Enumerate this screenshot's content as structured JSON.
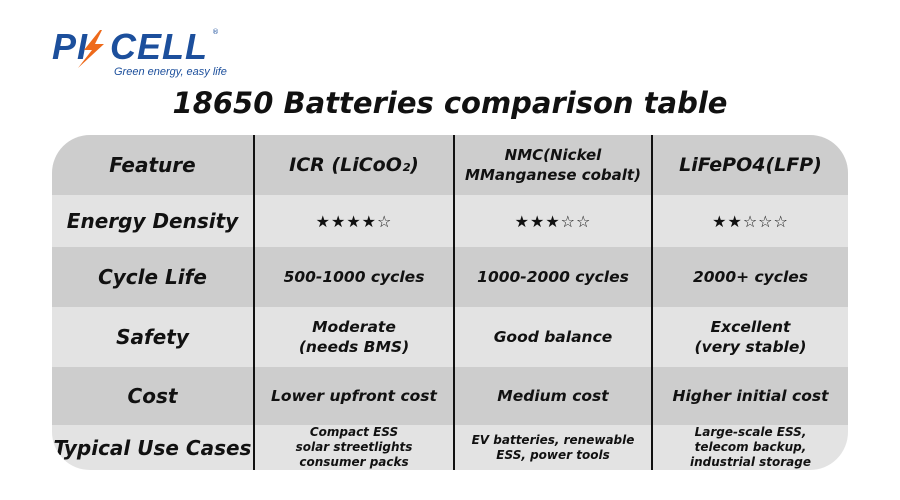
{
  "logo": {
    "brand": "PKCELL",
    "tagline": "Green energy, easy life",
    "registered": "®"
  },
  "title": "18650 Batteries comparison table",
  "colors": {
    "brand_blue": "#1c4f9c",
    "brand_orange": "#ee6a1b",
    "row_dark": "#cdcdcd",
    "row_light": "#e3e3e3"
  },
  "table": {
    "headers": [
      "Feature",
      "ICR (LiCoO₂)",
      "NMC(Nickel\nMManganese cobalt)",
      "LiFePO4(LFP)"
    ],
    "rows": [
      {
        "feature": "Energy Density",
        "values": [
          "★★★★☆",
          "★★★☆☆",
          "★★☆☆☆"
        ]
      },
      {
        "feature": "Cycle Life",
        "values": [
          "500-1000 cycles",
          "1000-2000 cycles",
          "2000+ cycles"
        ]
      },
      {
        "feature": "Safety",
        "values": [
          "Moderate\n(needs BMS)",
          "Good balance",
          "Excellent\n(very stable)"
        ]
      },
      {
        "feature": "Cost",
        "values": [
          "Lower upfront cost",
          "Medium cost",
          "Higher initial cost"
        ]
      },
      {
        "feature": "Typical Use Cases",
        "values": [
          "Compact ESS\nsolar streetlights\nconsumer packs",
          "EV batteries, renewable\nESS, power tools",
          "Large-scale ESS,\ntelecom backup,\nindustrial storage"
        ]
      }
    ]
  }
}
